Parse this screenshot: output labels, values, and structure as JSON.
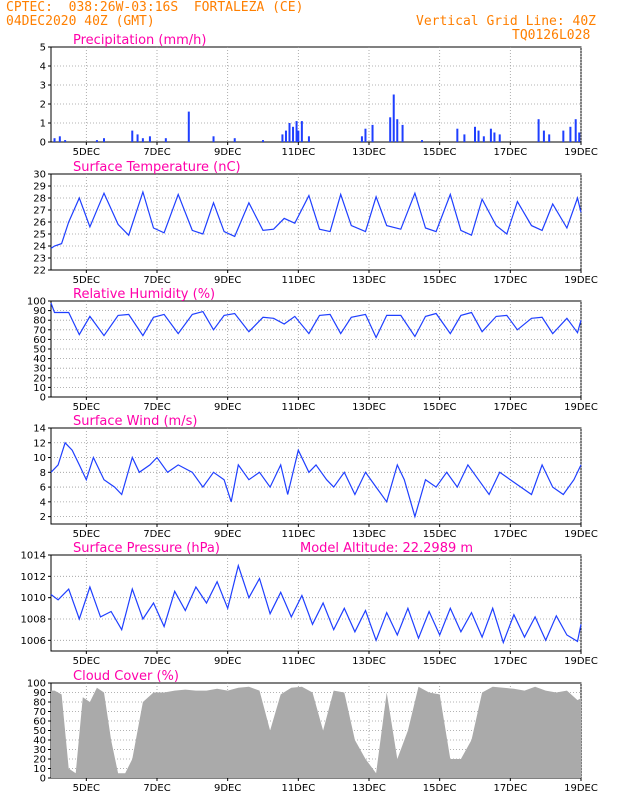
{
  "header": {
    "line1_left": "CPTEC:  038:26W-03:16S  FORTALEZA (CE)",
    "line2_left": "04DEC2020 40Z (GMT)",
    "line2_right": "Vertical Grid Line: 40Z",
    "line3_right": "TQ0126L028"
  },
  "colors": {
    "line": "#1f3fff",
    "title": "#ff00aa",
    "header": "#ff7f00",
    "cloud": "#aaaaaa",
    "grid": "#9a9a9a"
  },
  "x_ticks": [
    "5DEC",
    "7DEC",
    "9DEC",
    "11DEC",
    "13DEC",
    "15DEC",
    "17DEC",
    "19DEC"
  ],
  "chart_data": [
    {
      "type": "bar",
      "title": "Precipitation (mm/h)",
      "ylim": [
        0,
        5
      ],
      "y_ticks": [
        0,
        1,
        2,
        3,
        4,
        5
      ],
      "x_range_days": [
        4.0,
        19.0
      ],
      "x": [
        4.1,
        4.25,
        4.4,
        5.3,
        5.5,
        6.3,
        6.45,
        6.6,
        6.8,
        7.25,
        7.9,
        8.6,
        9.2,
        10.0,
        10.55,
        10.65,
        10.75,
        10.85,
        10.95,
        11.0,
        11.1,
        11.3,
        12.8,
        12.9,
        13.1,
        13.6,
        13.7,
        13.8,
        13.95,
        14.5,
        15.5,
        15.7,
        16.0,
        16.1,
        16.25,
        16.45,
        16.55,
        16.7,
        17.8,
        17.95,
        18.1,
        18.5,
        18.7,
        18.85,
        18.95
      ],
      "values": [
        0.2,
        0.3,
        0.1,
        0.1,
        0.2,
        0.6,
        0.4,
        0.2,
        0.3,
        0.2,
        1.6,
        0.3,
        0.2,
        0.1,
        0.4,
        0.6,
        1.0,
        0.8,
        1.1,
        0.6,
        1.1,
        0.3,
        0.3,
        0.7,
        0.9,
        1.3,
        2.5,
        1.2,
        0.9,
        0.1,
        0.7,
        0.4,
        0.8,
        0.6,
        0.3,
        0.7,
        0.5,
        0.4,
        1.2,
        0.6,
        0.4,
        0.6,
        0.8,
        1.2,
        0.5
      ]
    },
    {
      "type": "line",
      "title": "Surface Temperature (nC)",
      "ylim": [
        22,
        30
      ],
      "y_ticks": [
        22,
        23,
        24,
        25,
        26,
        27,
        28,
        29,
        30
      ],
      "x": [
        4.0,
        4.1,
        4.3,
        4.5,
        4.8,
        5.1,
        5.5,
        5.9,
        6.2,
        6.6,
        6.9,
        7.2,
        7.6,
        8.0,
        8.3,
        8.6,
        8.9,
        9.2,
        9.6,
        10.0,
        10.3,
        10.6,
        10.9,
        11.3,
        11.6,
        11.9,
        12.2,
        12.5,
        12.9,
        13.2,
        13.5,
        13.9,
        14.3,
        14.6,
        14.9,
        15.3,
        15.6,
        15.9,
        16.2,
        16.6,
        16.9,
        17.2,
        17.6,
        17.9,
        18.2,
        18.6,
        18.9,
        19.0
      ],
      "values": [
        23.8,
        24.0,
        24.2,
        26.0,
        28.0,
        25.6,
        28.4,
        25.8,
        24.9,
        28.5,
        25.5,
        25.1,
        28.3,
        25.3,
        25.0,
        27.6,
        25.2,
        24.8,
        27.6,
        25.3,
        25.4,
        26.3,
        25.9,
        28.2,
        25.4,
        25.2,
        28.3,
        25.7,
        25.2,
        28.1,
        25.7,
        25.4,
        28.4,
        25.5,
        25.2,
        28.3,
        25.3,
        24.9,
        27.9,
        25.7,
        25.0,
        27.7,
        25.7,
        25.3,
        27.5,
        25.5,
        28.0,
        26.8
      ]
    },
    {
      "type": "line",
      "title": "Relative Humidity (%)",
      "ylim": [
        0,
        100
      ],
      "y_ticks": [
        0,
        10,
        20,
        30,
        40,
        50,
        60,
        70,
        80,
        90,
        100
      ],
      "x": [
        4.0,
        4.1,
        4.5,
        4.8,
        5.1,
        5.5,
        5.9,
        6.2,
        6.6,
        6.9,
        7.2,
        7.6,
        8.0,
        8.3,
        8.6,
        8.9,
        9.2,
        9.6,
        10.0,
        10.3,
        10.6,
        10.9,
        11.3,
        11.6,
        11.9,
        12.2,
        12.5,
        12.9,
        13.2,
        13.5,
        13.9,
        14.3,
        14.6,
        14.9,
        15.3,
        15.6,
        15.9,
        16.2,
        16.6,
        16.9,
        17.2,
        17.6,
        17.9,
        18.2,
        18.6,
        18.9,
        19.0
      ],
      "values": [
        98,
        88,
        88,
        65,
        84,
        64,
        85,
        86,
        64,
        83,
        86,
        66,
        86,
        89,
        70,
        85,
        87,
        68,
        83,
        82,
        76,
        84,
        66,
        85,
        86,
        66,
        83,
        86,
        62,
        85,
        85,
        63,
        84,
        87,
        66,
        85,
        88,
        68,
        84,
        85,
        70,
        82,
        83,
        66,
        82,
        67,
        80
      ]
    },
    {
      "type": "line",
      "title": "Surface Wind (m/s)",
      "ylim": [
        1,
        14
      ],
      "y_ticks": [
        2,
        4,
        6,
        8,
        10,
        12,
        14
      ],
      "x": [
        4.0,
        4.2,
        4.4,
        4.6,
        4.8,
        5.0,
        5.2,
        5.5,
        5.8,
        6.0,
        6.3,
        6.5,
        6.8,
        7.0,
        7.3,
        7.6,
        8.0,
        8.3,
        8.6,
        8.9,
        9.1,
        9.3,
        9.6,
        9.9,
        10.2,
        10.5,
        10.7,
        11.0,
        11.3,
        11.5,
        11.8,
        12.0,
        12.3,
        12.6,
        12.9,
        13.2,
        13.5,
        13.8,
        14.0,
        14.3,
        14.6,
        14.9,
        15.2,
        15.5,
        15.8,
        16.1,
        16.4,
        16.7,
        17.0,
        17.3,
        17.6,
        17.9,
        18.2,
        18.5,
        18.8,
        19.0
      ],
      "values": [
        8,
        9,
        12,
        11,
        9,
        7,
        10,
        7,
        6,
        5,
        10,
        8,
        9,
        10,
        8,
        9,
        8,
        6,
        8,
        7,
        4,
        9,
        7,
        8,
        6,
        9,
        5,
        11,
        8,
        9,
        7,
        6,
        8,
        5,
        8,
        6,
        4,
        9,
        7,
        2,
        7,
        6,
        8,
        6,
        9,
        7,
        5,
        8,
        7,
        6,
        5,
        9,
        6,
        5,
        7,
        9
      ]
    },
    {
      "type": "line",
      "title": "Surface Pressure (hPa)",
      "subtitle": "Model Altitude: 22.2989 m",
      "ylim": [
        1005,
        1014
      ],
      "y_ticks": [
        1006,
        1008,
        1010,
        1012,
        1014
      ],
      "x": [
        4.0,
        4.2,
        4.5,
        4.8,
        5.1,
        5.4,
        5.7,
        6.0,
        6.3,
        6.6,
        6.9,
        7.2,
        7.5,
        7.8,
        8.1,
        8.4,
        8.7,
        9.0,
        9.3,
        9.6,
        9.9,
        10.2,
        10.5,
        10.8,
        11.1,
        11.4,
        11.7,
        12.0,
        12.3,
        12.6,
        12.9,
        13.2,
        13.5,
        13.8,
        14.1,
        14.4,
        14.7,
        15.0,
        15.3,
        15.6,
        15.9,
        16.2,
        16.5,
        16.8,
        17.1,
        17.4,
        17.7,
        18.0,
        18.3,
        18.6,
        18.9,
        19.0
      ],
      "values": [
        1010.3,
        1009.8,
        1010.8,
        1008.0,
        1011.0,
        1008.2,
        1008.7,
        1007.0,
        1010.8,
        1008.0,
        1009.5,
        1007.3,
        1010.6,
        1008.8,
        1011.0,
        1009.5,
        1011.5,
        1009.0,
        1013.0,
        1010.0,
        1011.8,
        1008.5,
        1010.5,
        1008.2,
        1010.2,
        1007.5,
        1009.5,
        1007.0,
        1009.0,
        1006.8,
        1008.8,
        1006.0,
        1008.6,
        1006.5,
        1009.0,
        1006.2,
        1008.7,
        1006.5,
        1009.0,
        1006.8,
        1008.6,
        1006.3,
        1009.0,
        1005.8,
        1008.4,
        1006.3,
        1008.2,
        1006.0,
        1008.3,
        1006.5,
        1005.9,
        1007.5
      ]
    },
    {
      "type": "area",
      "title": "Cloud Cover (%)",
      "ylim": [
        0,
        100
      ],
      "y_ticks": [
        0,
        10,
        20,
        30,
        40,
        50,
        60,
        70,
        80,
        90,
        100
      ],
      "x": [
        4.0,
        4.1,
        4.3,
        4.5,
        4.7,
        4.9,
        5.1,
        5.3,
        5.5,
        5.7,
        5.9,
        6.1,
        6.3,
        6.6,
        6.9,
        7.2,
        7.5,
        7.8,
        8.1,
        8.4,
        8.7,
        9.0,
        9.3,
        9.6,
        9.9,
        10.2,
        10.5,
        10.8,
        11.1,
        11.4,
        11.7,
        12.0,
        12.3,
        12.6,
        12.9,
        13.2,
        13.5,
        13.8,
        14.1,
        14.4,
        14.7,
        15.0,
        15.3,
        15.6,
        15.9,
        16.2,
        16.5,
        16.8,
        17.1,
        17.4,
        17.7,
        18.0,
        18.3,
        18.6,
        18.9,
        19.0
      ],
      "values": [
        92,
        92,
        88,
        10,
        5,
        85,
        80,
        95,
        90,
        40,
        5,
        5,
        20,
        80,
        90,
        90,
        92,
        93,
        92,
        92,
        94,
        92,
        95,
        96,
        92,
        50,
        88,
        95,
        96,
        90,
        50,
        92,
        90,
        40,
        20,
        5,
        90,
        20,
        50,
        96,
        90,
        88,
        20,
        20,
        40,
        90,
        96,
        95,
        94,
        92,
        96,
        92,
        90,
        92,
        82,
        84
      ]
    }
  ]
}
